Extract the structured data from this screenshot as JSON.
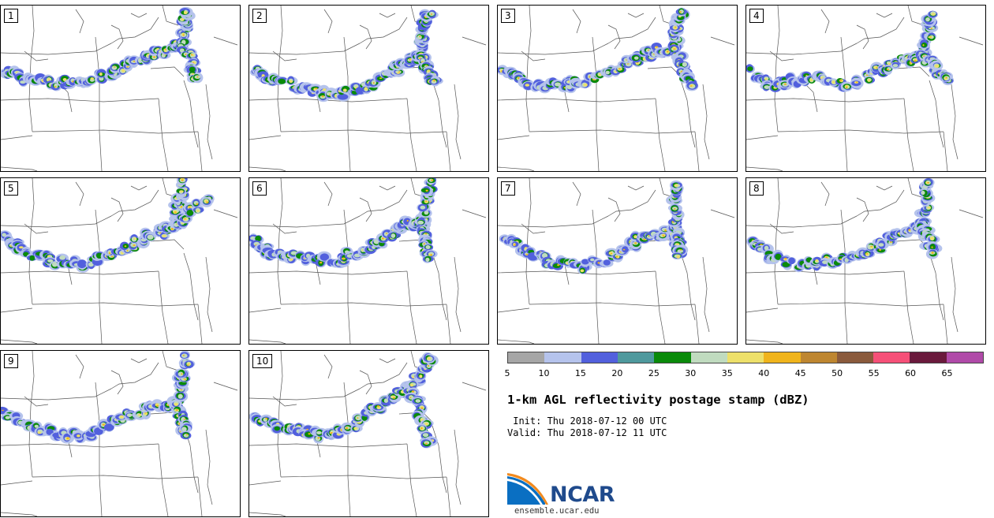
{
  "panels": [
    {
      "label": "1",
      "core": [
        [
          0.02,
          0.4
        ],
        [
          0.1,
          0.44
        ],
        [
          0.22,
          0.47
        ],
        [
          0.35,
          0.45
        ],
        [
          0.48,
          0.4
        ],
        [
          0.6,
          0.32
        ],
        [
          0.7,
          0.27
        ],
        [
          0.76,
          0.23
        ]
      ],
      "north": [
        [
          0.76,
          0.23
        ],
        [
          0.77,
          0.13
        ],
        [
          0.78,
          0.03
        ]
      ],
      "east": [
        [
          0.76,
          0.23
        ],
        [
          0.8,
          0.35
        ],
        [
          0.82,
          0.45
        ]
      ]
    },
    {
      "label": "2",
      "core": [
        [
          0.02,
          0.39
        ],
        [
          0.1,
          0.45
        ],
        [
          0.22,
          0.5
        ],
        [
          0.35,
          0.55
        ],
        [
          0.48,
          0.5
        ],
        [
          0.58,
          0.42
        ],
        [
          0.66,
          0.34
        ],
        [
          0.72,
          0.3
        ]
      ],
      "north": [
        [
          0.72,
          0.3
        ],
        [
          0.73,
          0.15
        ],
        [
          0.75,
          0.02
        ]
      ],
      "east": [
        [
          0.72,
          0.3
        ],
        [
          0.75,
          0.4
        ],
        [
          0.78,
          0.48
        ]
      ]
    },
    {
      "label": "3",
      "core": [
        [
          0.02,
          0.38
        ],
        [
          0.1,
          0.45
        ],
        [
          0.2,
          0.5
        ],
        [
          0.3,
          0.47
        ],
        [
          0.42,
          0.44
        ],
        [
          0.55,
          0.34
        ],
        [
          0.65,
          0.28
        ],
        [
          0.74,
          0.25
        ]
      ],
      "north": [
        [
          0.74,
          0.25
        ],
        [
          0.75,
          0.14
        ],
        [
          0.77,
          0.03
        ]
      ],
      "east": [
        [
          0.74,
          0.25
        ],
        [
          0.78,
          0.38
        ],
        [
          0.82,
          0.5
        ]
      ]
    },
    {
      "label": "4",
      "core": [
        [
          0.03,
          0.4
        ],
        [
          0.1,
          0.48
        ],
        [
          0.2,
          0.45
        ],
        [
          0.3,
          0.43
        ],
        [
          0.42,
          0.48
        ],
        [
          0.55,
          0.4
        ],
        [
          0.65,
          0.34
        ],
        [
          0.74,
          0.3
        ]
      ],
      "north": [
        [
          0.74,
          0.3
        ],
        [
          0.76,
          0.16
        ],
        [
          0.78,
          0.03
        ]
      ],
      "east": [
        [
          0.74,
          0.3
        ],
        [
          0.8,
          0.38
        ],
        [
          0.85,
          0.45
        ]
      ]
    },
    {
      "label": "5",
      "core": [
        [
          0.02,
          0.36
        ],
        [
          0.1,
          0.45
        ],
        [
          0.22,
          0.5
        ],
        [
          0.35,
          0.52
        ],
        [
          0.48,
          0.45
        ],
        [
          0.6,
          0.36
        ],
        [
          0.68,
          0.32
        ],
        [
          0.74,
          0.28
        ]
      ],
      "north": [
        [
          0.74,
          0.28
        ],
        [
          0.75,
          0.14
        ],
        [
          0.76,
          0.02
        ]
      ],
      "east": [
        [
          0.74,
          0.28
        ],
        [
          0.8,
          0.2
        ],
        [
          0.88,
          0.12
        ]
      ]
    },
    {
      "label": "6",
      "core": [
        [
          0.02,
          0.38
        ],
        [
          0.1,
          0.46
        ],
        [
          0.22,
          0.48
        ],
        [
          0.35,
          0.5
        ],
        [
          0.48,
          0.44
        ],
        [
          0.58,
          0.36
        ],
        [
          0.66,
          0.28
        ],
        [
          0.72,
          0.26
        ]
      ],
      "north": [
        [
          0.72,
          0.26
        ],
        [
          0.74,
          0.14
        ],
        [
          0.76,
          0.02
        ]
      ],
      "east": [
        [
          0.72,
          0.26
        ],
        [
          0.74,
          0.38
        ],
        [
          0.76,
          0.5
        ]
      ]
    },
    {
      "label": "7",
      "core": [
        [
          0.02,
          0.36
        ],
        [
          0.12,
          0.44
        ],
        [
          0.22,
          0.5
        ],
        [
          0.35,
          0.54
        ],
        [
          0.48,
          0.48
        ],
        [
          0.58,
          0.38
        ],
        [
          0.66,
          0.34
        ],
        [
          0.74,
          0.32
        ]
      ],
      "north": [
        [
          0.74,
          0.32
        ],
        [
          0.74,
          0.18
        ],
        [
          0.74,
          0.03
        ]
      ],
      "east": [
        [
          0.74,
          0.32
        ],
        [
          0.75,
          0.4
        ],
        [
          0.76,
          0.46
        ]
      ]
    },
    {
      "label": "8",
      "core": [
        [
          0.02,
          0.38
        ],
        [
          0.1,
          0.48
        ],
        [
          0.22,
          0.52
        ],
        [
          0.35,
          0.5
        ],
        [
          0.48,
          0.48
        ],
        [
          0.58,
          0.38
        ],
        [
          0.66,
          0.32
        ],
        [
          0.74,
          0.28
        ]
      ],
      "north": [
        [
          0.74,
          0.28
        ],
        [
          0.75,
          0.15
        ],
        [
          0.76,
          0.02
        ]
      ],
      "east": [
        [
          0.74,
          0.28
        ],
        [
          0.76,
          0.36
        ],
        [
          0.78,
          0.44
        ]
      ]
    },
    {
      "label": "9",
      "core": [
        [
          0.02,
          0.38
        ],
        [
          0.12,
          0.45
        ],
        [
          0.24,
          0.5
        ],
        [
          0.36,
          0.52
        ],
        [
          0.48,
          0.42
        ],
        [
          0.58,
          0.36
        ],
        [
          0.66,
          0.34
        ],
        [
          0.74,
          0.32
        ]
      ],
      "north": [
        [
          0.74,
          0.32
        ],
        [
          0.76,
          0.18
        ],
        [
          0.78,
          0.03
        ]
      ],
      "east": [
        [
          0.74,
          0.32
        ],
        [
          0.76,
          0.42
        ],
        [
          0.77,
          0.5
        ]
      ]
    },
    {
      "label": "10",
      "core": [
        [
          0.02,
          0.4
        ],
        [
          0.12,
          0.46
        ],
        [
          0.22,
          0.48
        ],
        [
          0.32,
          0.52
        ],
        [
          0.42,
          0.46
        ],
        [
          0.52,
          0.36
        ],
        [
          0.6,
          0.28
        ],
        [
          0.68,
          0.22
        ]
      ],
      "north": [
        [
          0.68,
          0.22
        ],
        [
          0.72,
          0.12
        ],
        [
          0.76,
          0.02
        ]
      ],
      "east": [
        [
          0.68,
          0.22
        ],
        [
          0.72,
          0.4
        ],
        [
          0.76,
          0.58
        ]
      ]
    }
  ],
  "colorbar": {
    "colors": [
      "#a6a6a6",
      "#b5c3ec",
      "#5260dd",
      "#4f999d",
      "#0a8a0a",
      "#c0dbbf",
      "#ede06a",
      "#f0b41c",
      "#be8630",
      "#8a5a3c",
      "#f65078",
      "#6a1a3c",
      "#b04aa8"
    ],
    "ticks": [
      "5",
      "10",
      "15",
      "20",
      "25",
      "30",
      "35",
      "40",
      "45",
      "50",
      "55",
      "60",
      "65"
    ]
  },
  "title": "1-km AGL reflectivity postage stamp (dBZ)",
  "init": " Init: Thu 2018-07-12 00 UTC",
  "valid": "Valid: Thu 2018-07-12 11 UTC",
  "logo": {
    "text": "NCAR",
    "site": "ensemble.ucar.edu"
  }
}
